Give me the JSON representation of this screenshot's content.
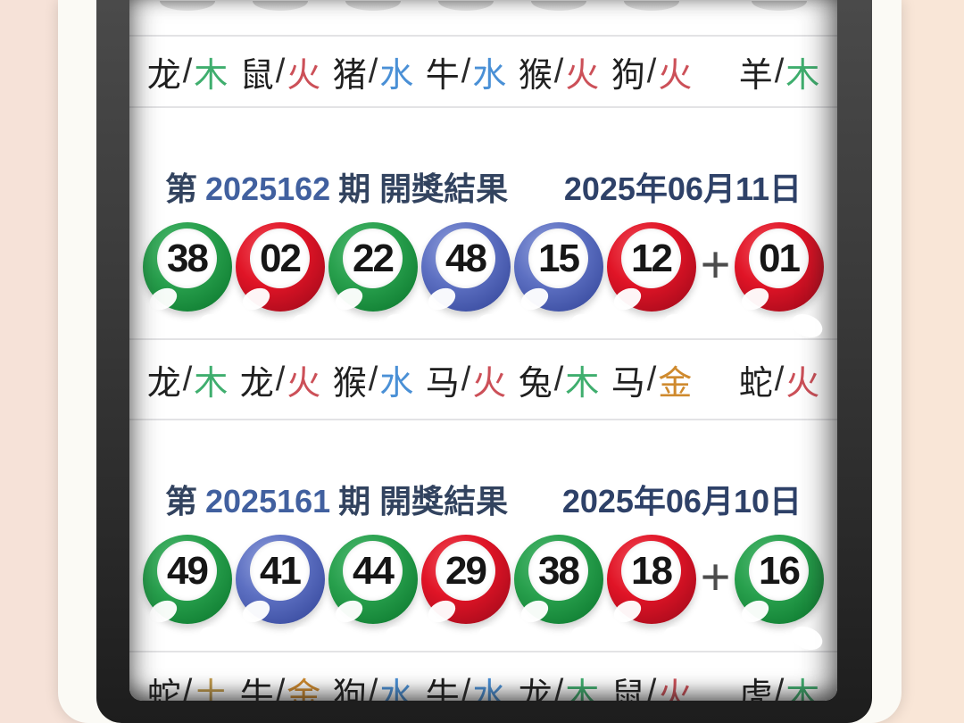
{
  "theme": {
    "page_background": "#f8e5d9",
    "phone_strip": "#fbfaf5",
    "bezel": "#3a3a3a",
    "screen_background": "#ffffff",
    "divider": "#e3e3e5",
    "issue_text": "#32435f",
    "issue_number_text": "#41609f",
    "date_text": "#2e4168",
    "animal_text": "#1f1f1f",
    "ball_number_text": "#161616",
    "plus_sign_color": "#4c4c4c"
  },
  "element_colors": {
    "木": "#3fae6e",
    "火": "#cc5058",
    "水": "#4a90d6",
    "金": "#cf8a2e",
    "土": "#c19a4b"
  },
  "ball_colors": {
    "green": {
      "light": "#55bb76",
      "main": "#28a04d",
      "dark": "#0d7a2f"
    },
    "red": {
      "light": "#f25560",
      "main": "#e01426",
      "dark": "#a30a1b"
    },
    "blue": {
      "light": "#97a5de",
      "main": "#5d70c2",
      "dark": "#36489c"
    }
  },
  "slash_sign": "/",
  "plus_sign": "+",
  "partial_top_row": {
    "zodiac": [
      {
        "animal": "龙",
        "element": "木"
      },
      {
        "animal": "鼠",
        "element": "火"
      },
      {
        "animal": "猪",
        "element": "水"
      },
      {
        "animal": "牛",
        "element": "水"
      },
      {
        "animal": "猴",
        "element": "火"
      },
      {
        "animal": "狗",
        "element": "火"
      },
      {
        "animal": "羊",
        "element": "木"
      }
    ]
  },
  "draws": [
    {
      "issue_prefix": "第",
      "issue_number": "2025162",
      "issue_suffix": "期 開獎結果",
      "date": "2025年06月11日",
      "balls": [
        {
          "num": "38",
          "color": "green"
        },
        {
          "num": "02",
          "color": "red"
        },
        {
          "num": "22",
          "color": "green"
        },
        {
          "num": "48",
          "color": "blue"
        },
        {
          "num": "15",
          "color": "blue"
        },
        {
          "num": "12",
          "color": "red"
        }
      ],
      "bonus": {
        "num": "01",
        "color": "red"
      },
      "zodiac": [
        {
          "animal": "龙",
          "element": "木"
        },
        {
          "animal": "龙",
          "element": "火"
        },
        {
          "animal": "猴",
          "element": "水"
        },
        {
          "animal": "马",
          "element": "火"
        },
        {
          "animal": "兔",
          "element": "木"
        },
        {
          "animal": "马",
          "element": "金"
        },
        {
          "animal": "蛇",
          "element": "火"
        }
      ]
    },
    {
      "issue_prefix": "第",
      "issue_number": "2025161",
      "issue_suffix": "期 開獎結果",
      "date": "2025年06月10日",
      "balls": [
        {
          "num": "49",
          "color": "green"
        },
        {
          "num": "41",
          "color": "blue"
        },
        {
          "num": "44",
          "color": "green"
        },
        {
          "num": "29",
          "color": "red"
        },
        {
          "num": "38",
          "color": "green"
        },
        {
          "num": "18",
          "color": "red"
        }
      ],
      "bonus": {
        "num": "16",
        "color": "green"
      },
      "zodiac": [
        {
          "animal": "蛇",
          "element": "土"
        },
        {
          "animal": "牛",
          "element": "金"
        },
        {
          "animal": "狗",
          "element": "水"
        },
        {
          "animal": "牛",
          "element": "水"
        },
        {
          "animal": "龙",
          "element": "木"
        },
        {
          "animal": "鼠",
          "element": "火"
        },
        {
          "animal": "虎",
          "element": "木"
        }
      ]
    }
  ]
}
